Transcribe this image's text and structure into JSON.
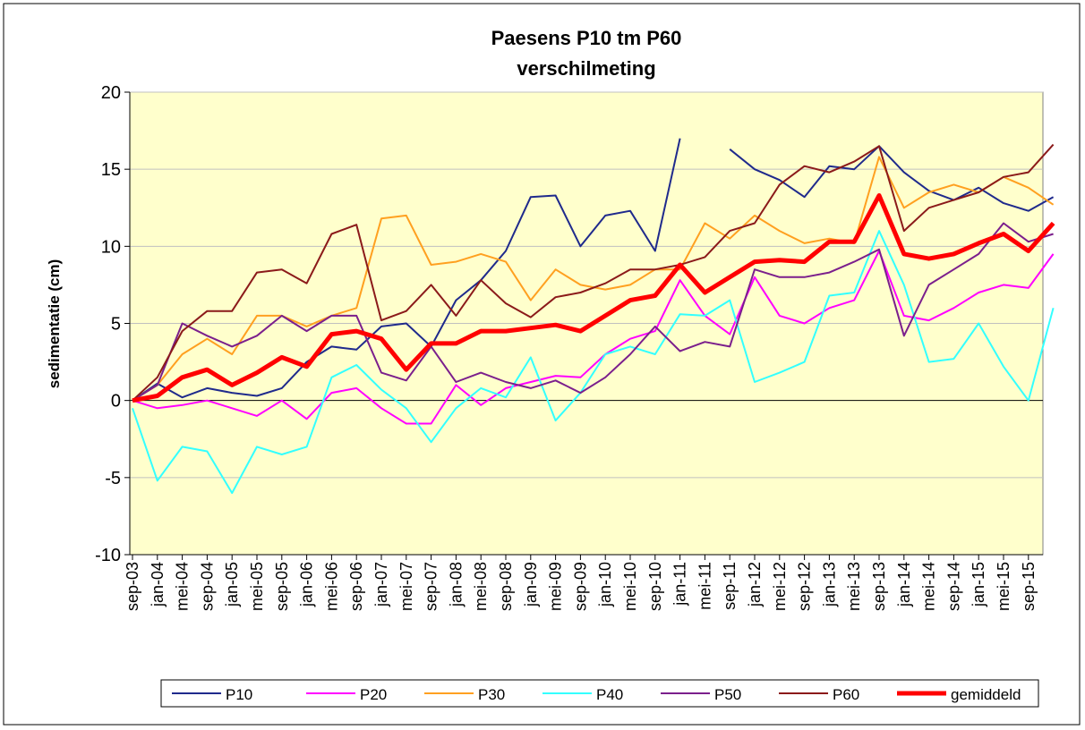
{
  "chart_data": {
    "type": "line",
    "title": "Paesens P10 tm P60",
    "subtitle": "verschilmeting",
    "y_label": "sedimentatie (cm)",
    "categories": [
      "sep-03",
      "jan-04",
      "mei-04",
      "sep-04",
      "jan-05",
      "mei-05",
      "sep-05",
      "jan-06",
      "mei-06",
      "sep-06",
      "jan-07",
      "mei-07",
      "sep-07",
      "jan-08",
      "mei-08",
      "sep-08",
      "jan-09",
      "mei-09",
      "sep-09",
      "jan-10",
      "mei-10",
      "sep-10",
      "jan-11",
      "mei-11",
      "sep-11",
      "jan-12",
      "mei-12",
      "sep-12",
      "jan-13",
      "mei-13",
      "sep-13",
      "jan-14",
      "mei-14",
      "sep-14",
      "jan-15",
      "mei-15",
      "sep-15",
      null
    ],
    "series": [
      {
        "name": "P10",
        "color": "#1f2a8c",
        "width": 2,
        "values": [
          0,
          1.1,
          0.2,
          0.8,
          0.5,
          0.3,
          0.8,
          2.5,
          3.5,
          3.3,
          4.8,
          5,
          3.5,
          6.5,
          7.8,
          9.7,
          13.2,
          13.3,
          10,
          12,
          12.3,
          9.7,
          17,
          null,
          16.3,
          15,
          14.3,
          13.2,
          15.2,
          15,
          16.5,
          14.8,
          13.6,
          13,
          13.8,
          12.8,
          12.3,
          13.2
        ]
      },
      {
        "name": "P20",
        "color": "#ff00ff",
        "width": 2,
        "values": [
          0,
          -0.5,
          -0.3,
          0,
          -0.5,
          -1,
          0,
          -1.2,
          0.5,
          0.8,
          -0.5,
          -1.5,
          -1.5,
          1,
          -0.3,
          0.8,
          1.2,
          1.6,
          1.5,
          3,
          4,
          4.5,
          7.8,
          5.5,
          4.3,
          8,
          5.5,
          5,
          6,
          6.5,
          9.7,
          5.5,
          5.2,
          6,
          7,
          7.5,
          7.3,
          9.5
        ]
      },
      {
        "name": "P30",
        "color": "#ffa020",
        "width": 2,
        "values": [
          0,
          1,
          3,
          4,
          3,
          5.5,
          5.5,
          4.8,
          5.5,
          6,
          11.8,
          12,
          8.8,
          9,
          9.5,
          9,
          6.5,
          8.5,
          7.5,
          7.2,
          7.5,
          8.5,
          8.5,
          11.5,
          10.5,
          12,
          11,
          10.2,
          10.5,
          10.2,
          15.8,
          12.5,
          13.5,
          14,
          13.5,
          14.5,
          13.8,
          12.7
        ]
      },
      {
        "name": "P40",
        "color": "#33ffff",
        "width": 2,
        "values": [
          -0.5,
          -5.2,
          -3,
          -3.3,
          -6,
          -3,
          -3.5,
          -3,
          1.5,
          2.3,
          0.7,
          -0.5,
          -2.7,
          -0.5,
          0.8,
          0.2,
          2.8,
          -1.3,
          0.5,
          3,
          3.5,
          3,
          5.6,
          5.5,
          6.5,
          1.2,
          1.8,
          2.5,
          6.8,
          7,
          11,
          7.5,
          2.5,
          2.7,
          5,
          2.2,
          0,
          6
        ]
      },
      {
        "name": "P50",
        "color": "#7b1f8c",
        "width": 2,
        "values": [
          0,
          1,
          5,
          4.2,
          3.5,
          4.2,
          5.5,
          4.5,
          5.5,
          5.5,
          1.8,
          1.3,
          3.5,
          1.2,
          1.8,
          1.2,
          0.8,
          1.3,
          0.5,
          1.5,
          3,
          4.8,
          3.2,
          3.8,
          3.5,
          8.5,
          8,
          8,
          8.3,
          9,
          9.8,
          4.2,
          7.5,
          8.5,
          9.5,
          11.5,
          10.3,
          10.8
        ]
      },
      {
        "name": "P60",
        "color": "#8b1a1a",
        "width": 2,
        "values": [
          0,
          1.5,
          4.5,
          5.8,
          5.8,
          8.3,
          8.5,
          7.6,
          10.8,
          11.4,
          5.2,
          5.8,
          7.5,
          5.5,
          7.8,
          6.3,
          5.4,
          6.7,
          7,
          7.6,
          8.5,
          8.5,
          8.8,
          9.3,
          11,
          11.5,
          14,
          15.2,
          14.8,
          15.5,
          16.5,
          11,
          12.5,
          13,
          13.5,
          14.5,
          14.8,
          16.6
        ]
      },
      {
        "name": "gemiddeld",
        "color": "#ff0000",
        "width": 5,
        "values": [
          0,
          0.3,
          1.5,
          2,
          1,
          1.8,
          2.8,
          2.2,
          4.3,
          4.5,
          4,
          2,
          3.7,
          3.7,
          4.5,
          4.5,
          4.7,
          4.9,
          4.5,
          5.5,
          6.5,
          6.8,
          8.8,
          7,
          8,
          9,
          9.1,
          9,
          10.3,
          10.3,
          13.3,
          9.5,
          9.2,
          9.5,
          10.2,
          10.8,
          9.7,
          11.5
        ]
      }
    ],
    "ylim": [
      -10,
      20
    ],
    "yticks": [
      -10,
      -5,
      0,
      5,
      10,
      15,
      20
    ],
    "grid": true,
    "legend": "bottom",
    "plot_background": "#ffffcc"
  }
}
